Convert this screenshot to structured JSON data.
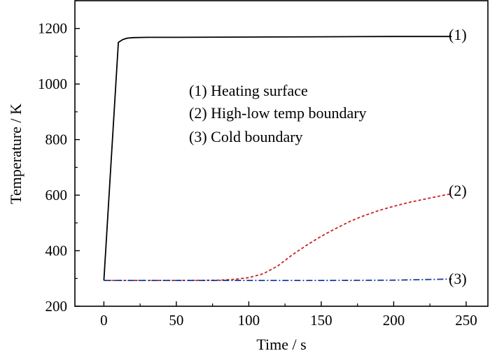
{
  "chart_data": {
    "type": "line",
    "xlabel": "Time / s",
    "ylabel": "Temperature / K",
    "xlim": [
      -20,
      265
    ],
    "ylim": [
      200,
      1300
    ],
    "xticks": [
      0,
      50,
      100,
      150,
      200,
      250
    ],
    "yticks": [
      200,
      400,
      600,
      800,
      1000,
      1200
    ],
    "legend_placement": "top-center",
    "legend": [
      "(1) Heating surface",
      "(2) High-low temp boundary",
      "(3) Cold boundary"
    ],
    "series": [
      {
        "name": "(1)",
        "color": "#000000",
        "dash": "solid",
        "x": [
          0,
          10,
          13,
          16,
          20,
          30,
          50,
          100,
          150,
          200,
          240
        ],
        "y": [
          293,
          1150,
          1160,
          1165,
          1167,
          1168,
          1168,
          1169,
          1170,
          1171,
          1171
        ]
      },
      {
        "name": "(2)",
        "color": "#cc2020",
        "dash": "dash",
        "x": [
          0,
          50,
          80,
          90,
          100,
          110,
          120,
          130,
          140,
          150,
          160,
          170,
          180,
          190,
          200,
          210,
          220,
          230,
          240
        ],
        "y": [
          293,
          293,
          294,
          297,
          303,
          317,
          345,
          385,
          420,
          452,
          480,
          506,
          527,
          545,
          560,
          573,
          584,
          595,
          605
        ]
      },
      {
        "name": "(3)",
        "color": "#1a3d9a",
        "dash": "dashdot",
        "x": [
          0,
          50,
          100,
          150,
          200,
          220,
          240
        ],
        "y": [
          293,
          293,
          293,
          293,
          294,
          296,
          298
        ]
      }
    ]
  }
}
